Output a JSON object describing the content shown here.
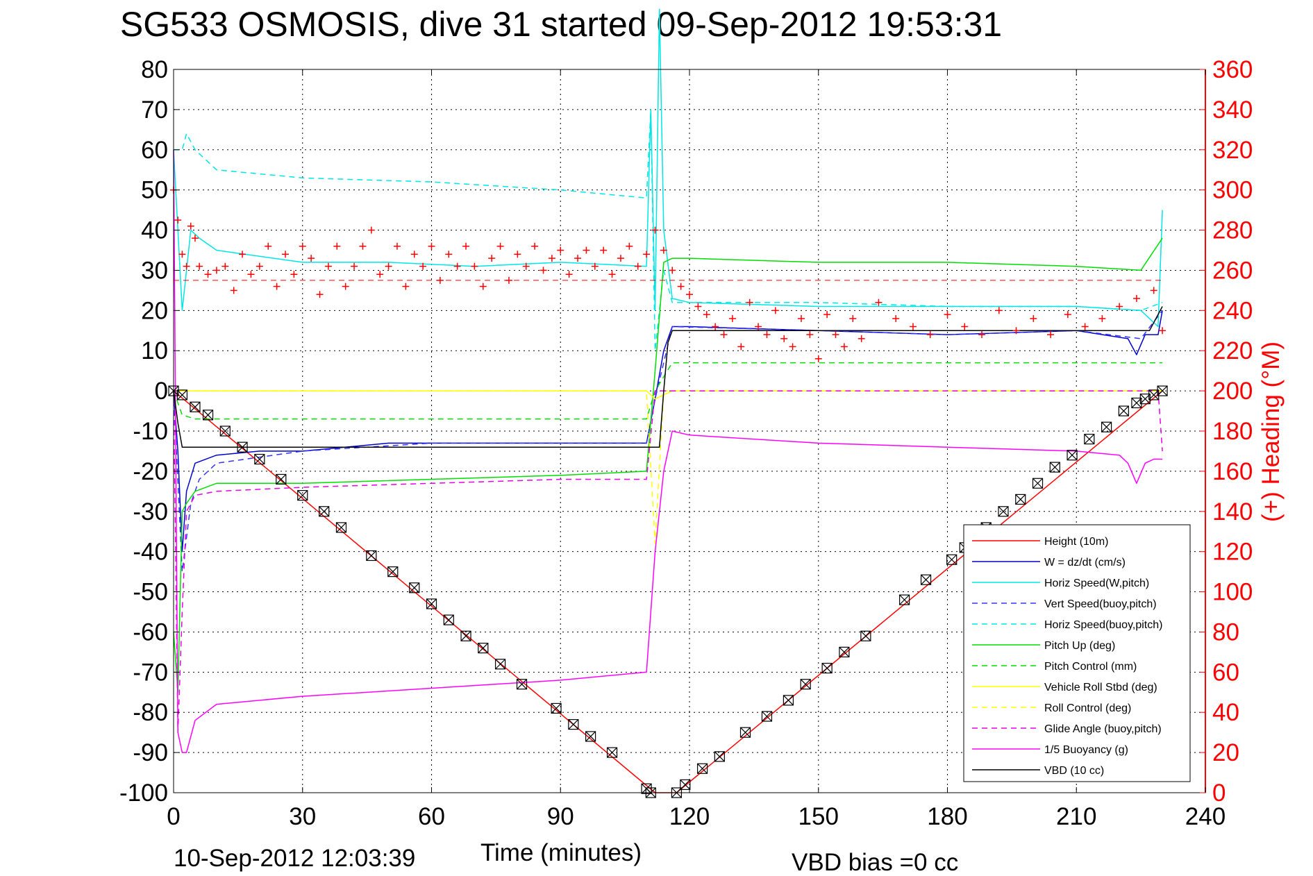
{
  "chart_data": {
    "type": "line",
    "title": "SG533 OSMOSIS, dive 31 started 09-Sep-2012 19:53:31",
    "xlabel": "Time (minutes)",
    "ylabel_right": "(+) Heading (°M)",
    "xlim": [
      0,
      240
    ],
    "ylim": [
      -100,
      80
    ],
    "ylim_right": [
      0,
      360
    ],
    "x_ticks": [
      "0",
      "30",
      "60",
      "90",
      "120",
      "150",
      "180",
      "210",
      "240"
    ],
    "y_ticks": [
      "80",
      "70",
      "60",
      "50",
      "40",
      "30",
      "20",
      "10",
      "0",
      "-10",
      "-20",
      "-30",
      "-40",
      "-50",
      "-60",
      "-70",
      "-80",
      "-90",
      "-100"
    ],
    "y_right_ticks": [
      "360",
      "340",
      "320",
      "300",
      "280",
      "260",
      "240",
      "220",
      "200",
      "180",
      "160",
      "140",
      "120",
      "100",
      "80",
      "60",
      "40",
      "20",
      "0"
    ],
    "grid": true,
    "legend_position": "bottom-right",
    "colors": {
      "height": "#ff0000",
      "w": "#0000cc",
      "horiz_speed": "#00e5e5",
      "pitch": "#00dd00",
      "roll": "#ffff00",
      "glide": "#e600e6",
      "buoyancy": "#ff00ff",
      "vbd": "#000000",
      "heading": "#ff0000"
    },
    "series": [
      {
        "name": "Height (10m)",
        "style": "solid",
        "color": "#ff0000",
        "x": [
          0,
          112,
          117,
          230
        ],
        "y": [
          0,
          -100,
          -100,
          0
        ]
      },
      {
        "name": "W = dz/dt (cm/s)",
        "style": "solid",
        "color": "#0000cc",
        "x": [
          0,
          1,
          2,
          3,
          5,
          10,
          20,
          30,
          50,
          70,
          90,
          110,
          112,
          114,
          116,
          120,
          150,
          180,
          210,
          222,
          224,
          226,
          229,
          230
        ],
        "y": [
          0,
          -15,
          -40,
          -25,
          -18,
          -16,
          -15,
          -15,
          -13,
          -13,
          -13,
          -13,
          -2,
          10,
          16,
          16,
          15,
          14,
          15,
          13,
          9,
          14,
          14,
          20
        ]
      },
      {
        "name": "Horiz Speed(W,pitch)",
        "style": "solid",
        "color": "#00e5e5",
        "x": [
          0,
          2,
          4,
          6,
          10,
          30,
          50,
          70,
          90,
          110,
          111,
          112,
          113,
          114,
          116,
          120,
          150,
          180,
          210,
          225,
          229,
          230
        ],
        "y": [
          60,
          20,
          40,
          38,
          35,
          32,
          32,
          31,
          32,
          31,
          70,
          20,
          95,
          40,
          23,
          22,
          21,
          21,
          21,
          20,
          16,
          45
        ]
      },
      {
        "name": "Vert Speed(buoy,pitch)",
        "style": "dashed",
        "color": "#3333ff",
        "x": [
          0,
          2,
          4,
          6,
          10,
          30,
          60,
          90,
          110,
          112,
          116,
          150,
          180,
          210,
          225,
          230
        ],
        "y": [
          0,
          -45,
          -28,
          -22,
          -18,
          -15,
          -13,
          -13,
          -13,
          -2,
          16,
          15,
          14,
          15,
          13,
          20
        ]
      },
      {
        "name": "Horiz Speed(buoy,pitch)",
        "style": "dashed",
        "color": "#00e5e5",
        "x": [
          0,
          2,
          3,
          5,
          10,
          30,
          60,
          90,
          110,
          111,
          112,
          114,
          116,
          150,
          180,
          210,
          225,
          230
        ],
        "y": [
          60,
          60,
          64,
          60,
          55,
          53,
          52,
          50,
          48,
          70,
          10,
          30,
          22,
          22,
          21,
          21,
          20,
          22
        ]
      },
      {
        "name": "Pitch Up (deg)",
        "style": "solid",
        "color": "#00dd00",
        "x": [
          0,
          1,
          2,
          3,
          5,
          10,
          30,
          60,
          90,
          110,
          112,
          114,
          116,
          120,
          150,
          180,
          210,
          225,
          230
        ],
        "y": [
          -60,
          -75,
          -30,
          -28,
          -25,
          -23,
          -23,
          -22,
          -21,
          -20,
          5,
          32,
          33,
          33,
          32,
          32,
          31,
          30,
          38
        ]
      },
      {
        "name": "Pitch Control (mm)",
        "style": "dashed",
        "color": "#00dd00",
        "x": [
          0,
          2,
          5,
          30,
          60,
          90,
          110,
          112,
          116,
          150,
          180,
          210,
          230
        ],
        "y": [
          0,
          -6,
          -7,
          -7,
          -7,
          -7,
          -7,
          0,
          7,
          7,
          7,
          7,
          7
        ]
      },
      {
        "name": "Vehicle Roll Stbd (deg)",
        "style": "solid",
        "color": "#ffff00",
        "x": [
          0,
          5,
          10,
          30,
          60,
          90,
          110,
          112,
          116,
          150,
          180,
          210,
          230
        ],
        "y": [
          0,
          0,
          0,
          0,
          0,
          0,
          0,
          -2,
          0,
          0,
          0,
          0,
          0
        ]
      },
      {
        "name": "Roll Control (deg)",
        "style": "dashed",
        "color": "#ffff00",
        "x": [
          0,
          30,
          60,
          90,
          110,
          112,
          114,
          115,
          116,
          150,
          180,
          210,
          230
        ],
        "y": [
          0,
          0,
          0,
          0,
          0,
          -38,
          0,
          0,
          0,
          0,
          0,
          0,
          0
        ]
      },
      {
        "name": "Glide Angle (buoy,pitch)",
        "style": "dashed",
        "color": "#e600e6",
        "x": [
          0,
          1,
          2,
          3,
          5,
          10,
          30,
          60,
          90,
          110,
          112,
          114,
          116,
          150,
          180,
          210,
          229,
          230
        ],
        "y": [
          0,
          -85,
          -55,
          -30,
          -26,
          -25,
          -24,
          -23,
          -22,
          -22,
          0,
          0,
          0,
          0,
          0,
          0,
          0,
          -15
        ]
      },
      {
        "name": "1/5 Buoyancy (g)",
        "style": "solid",
        "color": "#ff00ff",
        "x": [
          0,
          1,
          2,
          3,
          5,
          10,
          30,
          60,
          90,
          110,
          112,
          114,
          116,
          120,
          150,
          180,
          210,
          220,
          222,
          224,
          226,
          228,
          230
        ],
        "y": [
          60,
          -85,
          -90,
          -90,
          -82,
          -78,
          -76,
          -74,
          -72,
          -70,
          -40,
          -20,
          -10,
          -11,
          -13,
          -14,
          -15,
          -16,
          -18,
          -23,
          -18,
          -17,
          -17
        ]
      },
      {
        "name": "VBD (10 cc)",
        "style": "solid",
        "color": "#000000",
        "x": [
          0,
          1,
          2,
          112,
          113,
          114,
          115,
          116,
          227,
          230
        ],
        "y": [
          0,
          -8,
          -14,
          -14,
          -14,
          0,
          12,
          15,
          15,
          21
        ]
      }
    ],
    "heading_markers": {
      "name": "(+) Heading (°M)",
      "axis": "right",
      "color": "#ff0000",
      "x": [
        0,
        1,
        2,
        3,
        4,
        5,
        6,
        8,
        10,
        12,
        14,
        16,
        18,
        20,
        22,
        24,
        26,
        28,
        30,
        32,
        34,
        36,
        38,
        40,
        42,
        44,
        46,
        48,
        50,
        52,
        54,
        56,
        58,
        60,
        62,
        64,
        66,
        68,
        70,
        72,
        74,
        76,
        78,
        80,
        82,
        84,
        86,
        88,
        90,
        92,
        94,
        96,
        98,
        100,
        102,
        104,
        106,
        108,
        110,
        112,
        114,
        116,
        118,
        120,
        122,
        124,
        126,
        128,
        130,
        132,
        134,
        136,
        138,
        140,
        142,
        144,
        146,
        148,
        150,
        152,
        154,
        156,
        158,
        160,
        164,
        168,
        172,
        176,
        180,
        184,
        188,
        192,
        196,
        200,
        204,
        208,
        212,
        216,
        220,
        224,
        228,
        230
      ],
      "y": [
        300,
        285,
        268,
        262,
        282,
        276,
        262,
        258,
        260,
        262,
        250,
        268,
        258,
        262,
        272,
        252,
        268,
        258,
        272,
        266,
        248,
        262,
        272,
        252,
        262,
        272,
        280,
        258,
        262,
        272,
        252,
        268,
        262,
        272,
        255,
        268,
        262,
        272,
        262,
        252,
        266,
        272,
        255,
        268,
        262,
        272,
        260,
        266,
        270,
        258,
        266,
        270,
        262,
        270,
        258,
        266,
        272,
        262,
        268,
        280,
        270,
        260,
        252,
        248,
        242,
        238,
        232,
        228,
        236,
        222,
        244,
        232,
        228,
        240,
        226,
        222,
        236,
        228,
        216,
        238,
        228,
        222,
        236,
        226,
        244,
        236,
        232,
        228,
        238,
        232,
        228,
        240,
        230,
        236,
        228,
        238,
        232,
        236,
        242,
        246,
        250,
        230
      ]
    },
    "height_markers": {
      "x": [
        0,
        2,
        5,
        8,
        12,
        16,
        20,
        25,
        30,
        35,
        39,
        46,
        51,
        56,
        60,
        64,
        68,
        72,
        76,
        81,
        89,
        93,
        97,
        102,
        110,
        111,
        117,
        119,
        123,
        127,
        133,
        138,
        143,
        147,
        152,
        156,
        161,
        170,
        175,
        181,
        184,
        189,
        193,
        197,
        201,
        205,
        209,
        213,
        217,
        221,
        224,
        226,
        228,
        230
      ],
      "y": [
        0,
        -1,
        -4,
        -6,
        -10,
        -14,
        -17,
        -22,
        -26,
        -30,
        -34,
        -41,
        -45,
        -49,
        -53,
        -57,
        -61,
        -64,
        -68,
        -73,
        -79,
        -83,
        -86,
        -90,
        -99,
        -100,
        -100,
        -98,
        -94,
        -91,
        -85,
        -81,
        -77,
        -73,
        -69,
        -65,
        -61,
        -52,
        -47,
        -42,
        -39,
        -34,
        -30,
        -27,
        -23,
        -19,
        -16,
        -12,
        -9,
        -5,
        -3,
        -2,
        -1,
        0
      ]
    }
  },
  "legend": {
    "entries": [
      {
        "label": "Height (10m)",
        "color": "#ff0000",
        "style": "solid"
      },
      {
        "label": "W = dz/dt (cm/s)",
        "color": "#0000cc",
        "style": "solid"
      },
      {
        "label": "Horiz Speed(W,pitch)",
        "color": "#00e5e5",
        "style": "solid"
      },
      {
        "label": "Vert Speed(buoy,pitch)",
        "color": "#3333ff",
        "style": "dashed"
      },
      {
        "label": "Horiz Speed(buoy,pitch)",
        "color": "#00e5e5",
        "style": "dashed"
      },
      {
        "label": "Pitch Up (deg)",
        "color": "#00dd00",
        "style": "solid"
      },
      {
        "label": "Pitch Control (mm)",
        "color": "#00dd00",
        "style": "dashed"
      },
      {
        "label": "Vehicle Roll Stbd (deg)",
        "color": "#ffff00",
        "style": "solid"
      },
      {
        "label": "Roll Control (deg)",
        "color": "#ffff00",
        "style": "dashed"
      },
      {
        "label": "Glide Angle (buoy,pitch)",
        "color": "#e600e6",
        "style": "dashed"
      },
      {
        "label": "1/5 Buoyancy (g)",
        "color": "#ff00ff",
        "style": "solid"
      },
      {
        "label": "VBD (10 cc)",
        "color": "#000000",
        "style": "solid"
      }
    ]
  },
  "footer": {
    "timestamp": "10-Sep-2012 12:03:39",
    "vbd_bias": "VBD bias =0 cc"
  }
}
